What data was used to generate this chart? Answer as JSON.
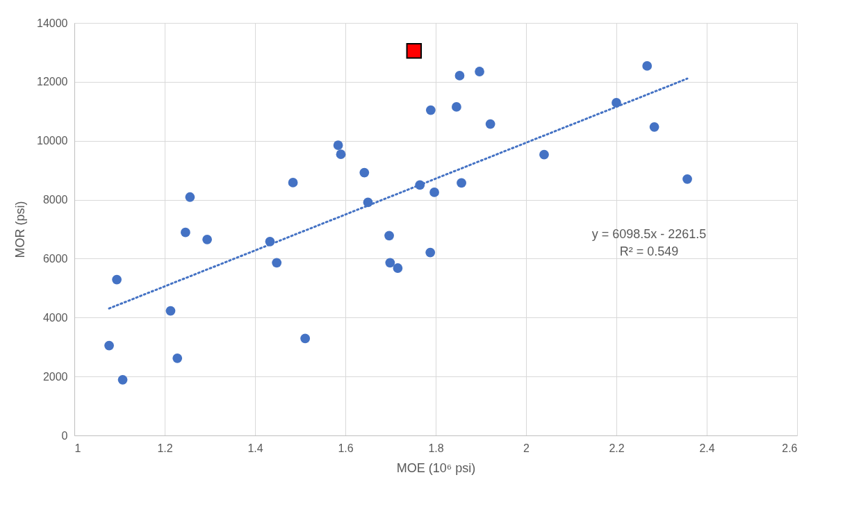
{
  "chart_data": {
    "type": "scatter",
    "xlabel": "MOE (10⁶ psi)",
    "ylabel": "MOR (psi)",
    "xlim": [
      1,
      2.6
    ],
    "xticks": [
      1,
      1.2,
      1.4,
      1.6,
      1.8,
      2,
      2.2,
      2.4,
      2.6
    ],
    "ylim": [
      0,
      14000
    ],
    "yticks": [
      0,
      2000,
      4000,
      6000,
      8000,
      10000,
      12000,
      14000
    ],
    "grid": true,
    "series": [
      {
        "color": "#4472c4",
        "marker": "circle",
        "x": [
          1.077,
          1.094,
          1.107,
          1.213,
          1.228,
          1.246,
          1.294,
          1.256,
          1.433,
          1.448,
          1.511,
          1.484,
          1.584,
          1.59,
          1.642,
          1.65,
          1.697,
          1.699,
          1.716,
          1.788,
          1.765,
          1.797,
          1.789,
          1.853,
          1.897,
          1.846,
          1.921,
          1.857,
          2.04,
          2.2,
          2.268,
          2.284,
          2.357
        ],
        "values": [
          3050,
          5290,
          1890,
          4230,
          2620,
          6890,
          6650,
          8090,
          6580,
          5860,
          3290,
          8580,
          9850,
          9540,
          8920,
          7910,
          6780,
          5860,
          5680,
          6210,
          8500,
          8250,
          11040,
          12210,
          12350,
          11150,
          10570,
          8570,
          9530,
          11290,
          12540,
          10470,
          8700
        ]
      },
      {
        "type": "scatter",
        "color": "#ff0000",
        "marker": "square",
        "x": [
          1.752
        ],
        "values": [
          13050
        ]
      },
      {
        "type": "line",
        "color": "#4472c4",
        "line_style": "dotted",
        "x": [
          1.077,
          2.357
        ],
        "values": [
          4310,
          12110
        ]
      }
    ],
    "annotations": [
      "y = 6098.5x - 2261.5",
      "R² = 0.549"
    ]
  }
}
